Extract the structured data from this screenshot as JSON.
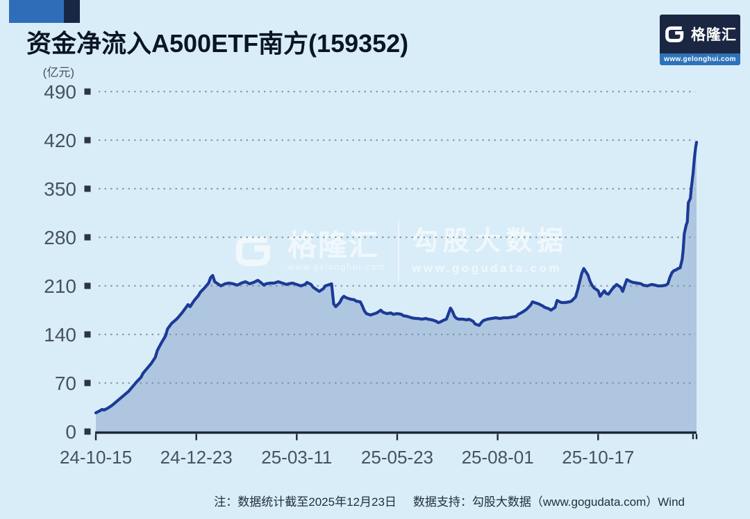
{
  "page": {
    "background": "#d9edf9"
  },
  "header": {
    "title": "资金净流入A500ETF南方(159352)",
    "accent_blue": "#2f6db8",
    "accent_navy": "#172744"
  },
  "brand_badge": {
    "logo_text": "格隆汇",
    "website": "www.gelonghui.com",
    "box_color": "#1b2642",
    "strip_color": "#2e72b9"
  },
  "watermark": {
    "brand": "格隆汇",
    "brand_site": "www.gelonghui.com",
    "partner": "勾股大数据",
    "partner_site": "www.gogudata.com"
  },
  "footnote": {
    "note": "注：数据统计截至2025年12月23日",
    "support": "数据支持：勾股大数据（www.gogudata.com）Wind"
  },
  "chart_data": {
    "type": "area",
    "title": "资金净流入A500ETF南方(159352)",
    "unit_label": "(亿元)",
    "ylabel": "亿元",
    "ylim": [
      0,
      490
    ],
    "yticks": [
      0,
      70,
      140,
      210,
      280,
      350,
      420,
      490
    ],
    "grid": "dotted-horizontal",
    "colors": {
      "line": "#1c3a96",
      "fill": "rgba(47,84,150,0.25)",
      "grid_dot": "#7e909d",
      "axis": "#1d2836",
      "tick_square": "#2b3642",
      "tick_text": "#46525f"
    },
    "x_axis": {
      "tick_labels": [
        "24-10-15",
        "24-12-23",
        "25-03-11",
        "25-05-23",
        "25-08-01",
        "25-10-17"
      ],
      "tick_days": [
        0,
        49,
        98,
        147,
        196,
        245
      ],
      "end_tick_days": [
        291.3,
        293
      ],
      "end_day": 293,
      "end_date": "25-12-23"
    },
    "series": [
      {
        "name": "资金净流入",
        "points": [
          [
            0,
            27
          ],
          [
            2,
            30
          ],
          [
            3,
            32
          ],
          [
            4,
            31
          ],
          [
            6,
            34
          ],
          [
            8,
            38
          ],
          [
            10,
            43
          ],
          [
            12,
            48
          ],
          [
            14,
            53
          ],
          [
            16,
            58
          ],
          [
            18,
            65
          ],
          [
            20,
            72
          ],
          [
            22,
            78
          ],
          [
            23,
            84
          ],
          [
            25,
            91
          ],
          [
            27,
            98
          ],
          [
            29,
            107
          ],
          [
            30,
            117
          ],
          [
            32,
            128
          ],
          [
            34,
            138
          ],
          [
            35,
            148
          ],
          [
            37,
            156
          ],
          [
            39,
            161
          ],
          [
            40,
            164
          ],
          [
            42,
            171
          ],
          [
            44,
            179
          ],
          [
            45,
            183
          ],
          [
            46,
            180
          ],
          [
            48,
            189
          ],
          [
            50,
            196
          ],
          [
            51,
            201
          ],
          [
            53,
            207
          ],
          [
            55,
            214
          ],
          [
            56,
            222
          ],
          [
            57,
            225
          ],
          [
            58,
            216
          ],
          [
            60,
            212
          ],
          [
            61,
            210
          ],
          [
            63,
            213
          ],
          [
            65,
            214
          ],
          [
            67,
            213
          ],
          [
            69,
            211
          ],
          [
            71,
            214
          ],
          [
            73,
            216
          ],
          [
            75,
            213
          ],
          [
            77,
            215
          ],
          [
            79,
            218
          ],
          [
            80,
            216
          ],
          [
            82,
            211
          ],
          [
            83,
            213
          ],
          [
            85,
            214
          ],
          [
            87,
            214
          ],
          [
            89,
            216
          ],
          [
            91,
            214
          ],
          [
            93,
            212
          ],
          [
            94,
            213
          ],
          [
            96,
            214
          ],
          [
            98,
            212
          ],
          [
            100,
            210
          ],
          [
            102,
            212
          ],
          [
            103,
            215
          ],
          [
            105,
            212
          ],
          [
            106,
            208
          ],
          [
            108,
            204
          ],
          [
            109,
            202
          ],
          [
            111,
            206
          ],
          [
            112,
            210
          ],
          [
            114,
            212
          ],
          [
            115,
            213
          ],
          [
            116,
            184
          ],
          [
            117,
            180
          ],
          [
            119,
            186
          ],
          [
            120,
            192
          ],
          [
            121,
            195
          ],
          [
            122,
            193
          ],
          [
            124,
            191
          ],
          [
            126,
            190
          ],
          [
            127,
            188
          ],
          [
            129,
            187
          ],
          [
            130,
            181
          ],
          [
            131,
            174
          ],
          [
            132,
            170
          ],
          [
            134,
            168
          ],
          [
            135,
            169
          ],
          [
            137,
            171
          ],
          [
            139,
            175
          ],
          [
            140,
            172
          ],
          [
            142,
            170
          ],
          [
            144,
            171
          ],
          [
            145,
            169
          ],
          [
            147,
            170
          ],
          [
            149,
            169
          ],
          [
            150,
            167
          ],
          [
            152,
            166
          ],
          [
            154,
            164
          ],
          [
            156,
            163
          ],
          [
            157,
            163
          ],
          [
            159,
            162
          ],
          [
            161,
            163
          ],
          [
            162,
            162
          ],
          [
            164,
            161
          ],
          [
            166,
            159
          ],
          [
            167,
            157
          ],
          [
            168,
            158
          ],
          [
            170,
            161
          ],
          [
            171,
            162
          ],
          [
            172,
            170
          ],
          [
            173,
            178
          ],
          [
            174,
            173
          ],
          [
            175,
            166
          ],
          [
            176,
            163
          ],
          [
            177,
            162
          ],
          [
            179,
            162
          ],
          [
            181,
            161
          ],
          [
            182,
            162
          ],
          [
            184,
            159
          ],
          [
            185,
            155
          ],
          [
            187,
            153
          ],
          [
            188,
            157
          ],
          [
            189,
            160
          ],
          [
            191,
            162
          ],
          [
            193,
            163
          ],
          [
            195,
            164
          ],
          [
            197,
            163
          ],
          [
            199,
            164
          ],
          [
            201,
            164
          ],
          [
            203,
            165
          ],
          [
            205,
            166
          ],
          [
            206,
            169
          ],
          [
            208,
            172
          ],
          [
            210,
            176
          ],
          [
            212,
            182
          ],
          [
            213,
            187
          ],
          [
            215,
            185
          ],
          [
            216,
            184
          ],
          [
            218,
            181
          ],
          [
            219,
            179
          ],
          [
            221,
            177
          ],
          [
            222,
            175
          ],
          [
            224,
            179
          ],
          [
            225,
            189
          ],
          [
            227,
            186
          ],
          [
            229,
            186
          ],
          [
            231,
            187
          ],
          [
            232,
            188
          ],
          [
            234,
            194
          ],
          [
            235,
            204
          ],
          [
            237,
            228
          ],
          [
            238,
            235
          ],
          [
            240,
            226
          ],
          [
            241,
            217
          ],
          [
            242,
            211
          ],
          [
            243,
            207
          ],
          [
            245,
            203
          ],
          [
            246,
            195
          ],
          [
            248,
            203
          ],
          [
            249,
            199
          ],
          [
            250,
            198
          ],
          [
            252,
            206
          ],
          [
            253,
            209
          ],
          [
            254,
            212
          ],
          [
            256,
            208
          ],
          [
            257,
            202
          ],
          [
            258,
            211
          ],
          [
            259,
            219
          ],
          [
            261,
            216
          ],
          [
            262,
            215
          ],
          [
            264,
            214
          ],
          [
            266,
            213
          ],
          [
            267,
            211
          ],
          [
            269,
            210
          ],
          [
            271,
            212
          ],
          [
            273,
            211
          ],
          [
            274,
            210
          ],
          [
            276,
            210
          ],
          [
            278,
            211
          ],
          [
            279,
            213
          ],
          [
            280,
            222
          ],
          [
            281,
            229
          ],
          [
            282,
            232
          ],
          [
            283,
            233
          ],
          [
            284,
            235
          ],
          [
            285,
            236
          ],
          [
            286,
            248
          ],
          [
            286.5,
            262
          ],
          [
            287,
            285
          ],
          [
            288,
            298
          ],
          [
            288.5,
            302
          ],
          [
            289,
            330
          ],
          [
            290,
            336
          ],
          [
            290.5,
            352
          ],
          [
            291.3,
            372
          ],
          [
            292,
            395
          ],
          [
            292.6,
            410
          ],
          [
            293,
            417
          ]
        ]
      }
    ]
  }
}
